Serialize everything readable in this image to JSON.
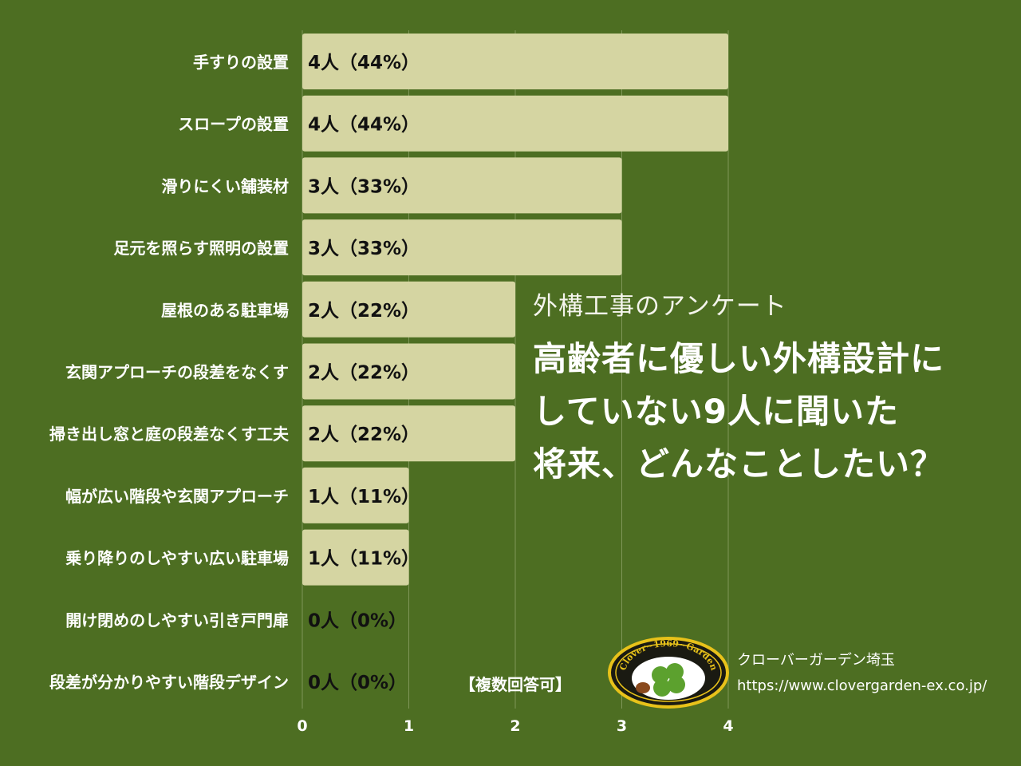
{
  "chart_data": {
    "type": "bar",
    "orientation": "horizontal",
    "categories": [
      "手すりの設置",
      "スロープの設置",
      "滑りにくい舗装材",
      "足元を照らす照明の設置",
      "屋根のある駐車場",
      "玄関アプローチの段差をなくす",
      "掃き出し窓と庭の段差なくす工夫",
      "幅が広い階段や玄関アプローチ",
      "乗り降りのしやすい広い駐車場",
      "開け閉めのしやすい引き戸門扉",
      "段差が分かりやすい階段デザイン"
    ],
    "values": [
      4,
      4,
      3,
      3,
      2,
      2,
      2,
      1,
      1,
      0,
      0
    ],
    "data_labels": [
      "4人（44%）",
      "4人（44%）",
      "3人（33%）",
      "3人（33%）",
      "2人（22%）",
      "2人（22%）",
      "2人（22%）",
      "1人（11%）",
      "1人（11%）",
      "0人（0%）",
      "0人（0%）"
    ],
    "xlim": [
      0,
      4
    ],
    "xticks": [
      "0",
      "1",
      "2",
      "3",
      "4"
    ],
    "grid": true,
    "subtitle": "外構工事のアンケート",
    "title_lines": [
      "高齢者に優しい外構設計に",
      "していない9人に聞いた",
      "将来、どんなことしたい？"
    ],
    "note": "【複数回答可】"
  },
  "logo": {
    "text": "Clover~1969~Garden"
  },
  "company": {
    "name": "クローバーガーデン埼玉",
    "url": "https://www.clovergarden-ex.co.jp/"
  },
  "colors": {
    "background": "#4d6e22",
    "bar": "#d5d5a2",
    "label_text": "#ffffff",
    "value_text": "#111111",
    "grid": "#7f9658"
  }
}
